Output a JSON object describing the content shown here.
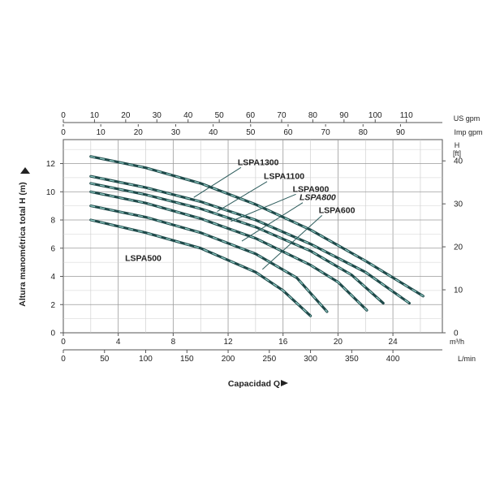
{
  "chart_data": {
    "type": "line",
    "ylabel": "Altura manométrica total H  (m)",
    "xlabel": "Capacidad Q",
    "xlim": [
      0,
      27.6
    ],
    "ylim": [
      0,
      13.7
    ],
    "grid": true,
    "axes": {
      "x_bottom": {
        "unit": "m³/h",
        "ticks": [
          {
            "value": 0,
            "label": "0"
          },
          {
            "value": 4,
            "label": "4"
          },
          {
            "value": 8,
            "label": "8"
          },
          {
            "value": 12,
            "label": "12"
          },
          {
            "value": 16,
            "label": "16"
          },
          {
            "value": 20,
            "label": "20"
          },
          {
            "value": 24,
            "label": "24"
          }
        ]
      },
      "x_lpm": {
        "unit": "L/min",
        "ticks": [
          {
            "value": 0,
            "label": "0"
          },
          {
            "value": 50,
            "label": "50"
          },
          {
            "value": 100,
            "label": "100"
          },
          {
            "value": 150,
            "label": "150"
          },
          {
            "value": 200,
            "label": "200"
          },
          {
            "value": 250,
            "label": "250"
          },
          {
            "value": 300,
            "label": "300"
          },
          {
            "value": 350,
            "label": "350"
          },
          {
            "value": 400,
            "label": "400"
          }
        ]
      },
      "x_imp_gpm": {
        "unit": "Imp gpm",
        "ticks": [
          {
            "value": 0,
            "label": "0"
          },
          {
            "value": 10,
            "label": "10"
          },
          {
            "value": 20,
            "label": "20"
          },
          {
            "value": 30,
            "label": "30"
          },
          {
            "value": 40,
            "label": "40"
          },
          {
            "value": 50,
            "label": "50"
          },
          {
            "value": 60,
            "label": "60"
          },
          {
            "value": 70,
            "label": "70"
          },
          {
            "value": 80,
            "label": "80"
          },
          {
            "value": 90,
            "label": "90"
          }
        ]
      },
      "x_us_gpm": {
        "unit": "US gpm",
        "ticks": [
          {
            "value": 0,
            "label": "0"
          },
          {
            "value": 10,
            "label": "10"
          },
          {
            "value": 20,
            "label": "20"
          },
          {
            "value": 30,
            "label": "30"
          },
          {
            "value": 40,
            "label": "40"
          },
          {
            "value": 50,
            "label": "50"
          },
          {
            "value": 60,
            "label": "60"
          },
          {
            "value": 70,
            "label": "70"
          },
          {
            "value": 80,
            "label": "80"
          },
          {
            "value": 90,
            "label": "90"
          },
          {
            "value": 100,
            "label": "100"
          },
          {
            "value": 110,
            "label": "110"
          }
        ]
      },
      "y_left": {
        "unit": "m",
        "ticks": [
          {
            "value": 0,
            "label": "0"
          },
          {
            "value": 2,
            "label": "2"
          },
          {
            "value": 4,
            "label": "4"
          },
          {
            "value": 6,
            "label": "6"
          },
          {
            "value": 8,
            "label": "8"
          },
          {
            "value": 10,
            "label": "10"
          },
          {
            "value": 12,
            "label": "12"
          }
        ]
      },
      "y_right": {
        "unit_line1": "H",
        "unit_line2": "[ft]",
        "ticks": [
          {
            "value": 0,
            "label": "0"
          },
          {
            "value": 10,
            "label": "10"
          },
          {
            "value": 20,
            "label": "20"
          },
          {
            "value": 30,
            "label": "30"
          },
          {
            "value": 40,
            "label": "40"
          }
        ]
      }
    },
    "series": [
      {
        "name": "LSPA1300",
        "points": [
          [
            2.0,
            12.5
          ],
          [
            6.0,
            11.7
          ],
          [
            10.0,
            10.6
          ],
          [
            14.0,
            9.1
          ],
          [
            18.0,
            7.3
          ],
          [
            22.0,
            5.1
          ],
          [
            26.2,
            2.6
          ]
        ]
      },
      {
        "name": "LSPA1100",
        "points": [
          [
            2.0,
            11.1
          ],
          [
            6.0,
            10.3
          ],
          [
            10.0,
            9.3
          ],
          [
            14.0,
            8.0
          ],
          [
            18.0,
            6.3
          ],
          [
            22.0,
            4.3
          ],
          [
            25.2,
            2.1
          ]
        ]
      },
      {
        "name": "LSPA900",
        "points": [
          [
            2.0,
            10.6
          ],
          [
            6.0,
            9.8
          ],
          [
            10.0,
            8.8
          ],
          [
            14.0,
            7.5
          ],
          [
            18.0,
            5.8
          ],
          [
            21.0,
            4.1
          ],
          [
            23.3,
            2.1
          ]
        ]
      },
      {
        "name": "LSPA800",
        "points": [
          [
            2.0,
            10.0
          ],
          [
            6.0,
            9.2
          ],
          [
            10.0,
            8.1
          ],
          [
            14.0,
            6.7
          ],
          [
            18.0,
            4.8
          ],
          [
            20.0,
            3.6
          ],
          [
            22.1,
            1.6
          ]
        ]
      },
      {
        "name": "LSPA600",
        "points": [
          [
            2.0,
            9.0
          ],
          [
            6.0,
            8.2
          ],
          [
            10.0,
            7.1
          ],
          [
            14.0,
            5.6
          ],
          [
            17.0,
            3.9
          ],
          [
            19.2,
            1.5
          ]
        ]
      },
      {
        "name": "LSPA500",
        "points": [
          [
            2.0,
            8.0
          ],
          [
            6.0,
            7.1
          ],
          [
            10.0,
            6.0
          ],
          [
            14.0,
            4.3
          ],
          [
            16.0,
            3.0
          ],
          [
            18.0,
            1.2
          ]
        ]
      }
    ],
    "labels": [
      {
        "text": "LSPA1300",
        "italic": false,
        "at": [
          12.7,
          11.9
        ],
        "leader_to": [
          9.5,
          9.6
        ]
      },
      {
        "text": "LSPA1100",
        "italic": false,
        "at": [
          14.6,
          10.9
        ],
        "leader_to": [
          11.2,
          8.6
        ]
      },
      {
        "text": "LSPA900",
        "italic": false,
        "at": [
          16.7,
          10.0
        ],
        "leader_to": [
          12.2,
          7.9
        ]
      },
      {
        "text": "LSPA800",
        "italic": true,
        "at": [
          17.2,
          9.4
        ],
        "leader_to": [
          13.0,
          6.5
        ]
      },
      {
        "text": "LSPA600",
        "italic": false,
        "at": [
          18.6,
          8.5
        ],
        "leader_to": [
          14.5,
          4.5
        ]
      },
      {
        "text": "LSPA500",
        "italic": false,
        "at": [
          4.5,
          5.1
        ],
        "leader_to": null
      }
    ]
  }
}
